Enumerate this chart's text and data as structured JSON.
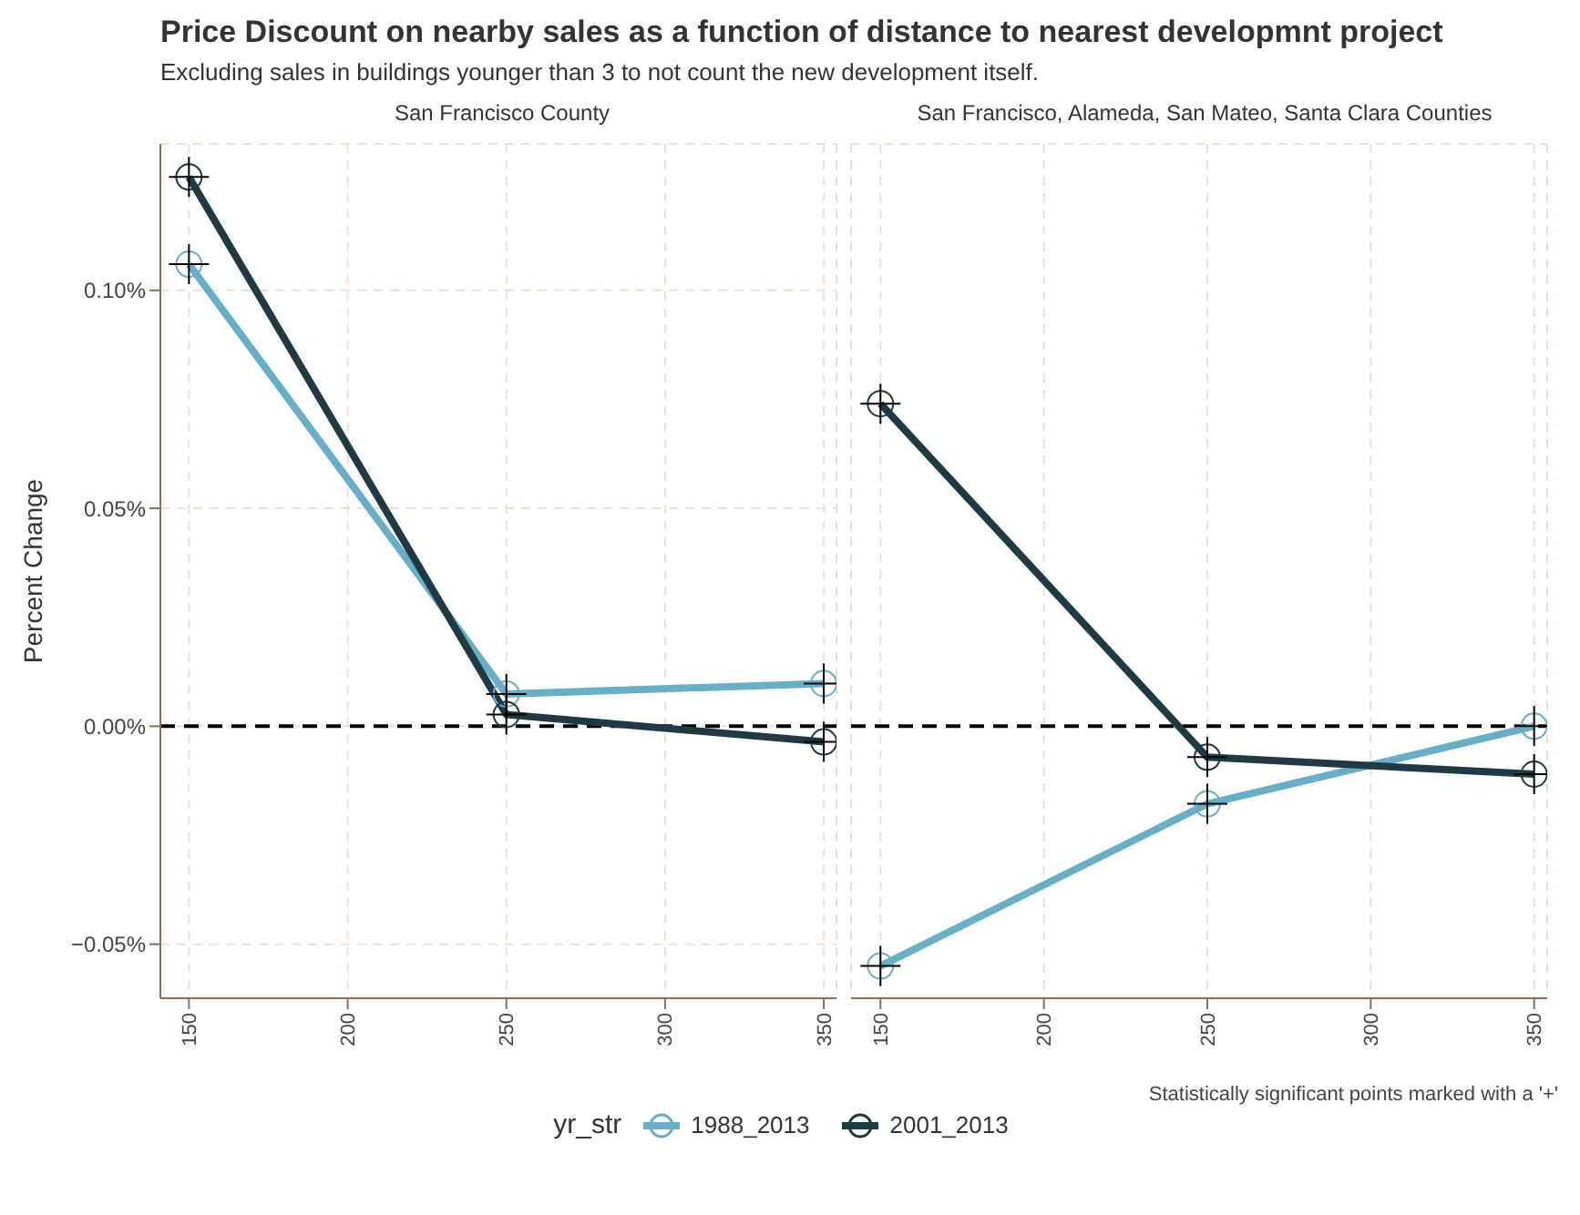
{
  "chart_data": [
    {
      "type": "line",
      "title": "Price Discount on nearby sales as a function of distance to nearest developmnt project",
      "subtitle": "Excluding sales in buildings younger than 3 to not count the new development itself.",
      "annotations": [
        "San Francisco County"
      ],
      "ylabel": "Percent Change",
      "x": [
        150,
        250,
        350
      ],
      "xlim": [
        141,
        354
      ],
      "xticks": [
        150,
        200,
        250,
        300,
        350
      ],
      "ylim": [
        -0.0624,
        0.1336
      ],
      "yticks": [
        {
          "value": -0.05,
          "label": "−0.05%"
        },
        {
          "value": 0,
          "label": "0.00%"
        },
        {
          "value": 0.05,
          "label": "0.05%"
        },
        {
          "value": 0.1,
          "label": "0.10%"
        }
      ],
      "grid": true,
      "marker": "circle",
      "line_style": "solid",
      "ref_lines": [
        {
          "axis": "y",
          "value": 0,
          "color": "#000000",
          "line_style": "dashed"
        }
      ],
      "series": [
        {
          "color": "#67afc7",
          "values": [
            0.106,
            0.0074,
            0.0098
          ]
        },
        {
          "color": "#1f3a44",
          "values": [
            0.126,
            0.0027,
            -0.0036
          ]
        }
      ]
    },
    {
      "type": "line",
      "annotations": [
        "San Francisco, Alameda, San Mateo, Santa Clara Counties",
        "Statistically significant points marked with a '+'"
      ],
      "legend_title": "yr_str",
      "legend": "bottom",
      "tick_labels": "x",
      "x": [
        150,
        250,
        350
      ],
      "xlim": [
        141,
        354
      ],
      "xticks": [
        150,
        200,
        250,
        300,
        350
      ],
      "ylim": [
        -0.0624,
        0.1336
      ],
      "yticks": [
        {
          "value": -0.05,
          "label": null
        },
        {
          "value": 0,
          "label": null
        },
        {
          "value": 0.05,
          "label": null
        },
        {
          "value": 0.1,
          "label": null
        }
      ],
      "grid": true,
      "marker": "circle",
      "line_style": "solid",
      "ref_lines": [
        {
          "axis": "y",
          "value": 0,
          "color": "#000000",
          "line_style": "dashed"
        }
      ],
      "series": [
        {
          "name": "1988_2013",
          "color": "#67afc7",
          "values": [
            -0.055,
            -0.0178,
            0
          ]
        },
        {
          "name": "2001_2013",
          "color": "#1f3a44",
          "values": [
            0.074,
            -0.0071,
            -0.011
          ]
        }
      ]
    }
  ]
}
